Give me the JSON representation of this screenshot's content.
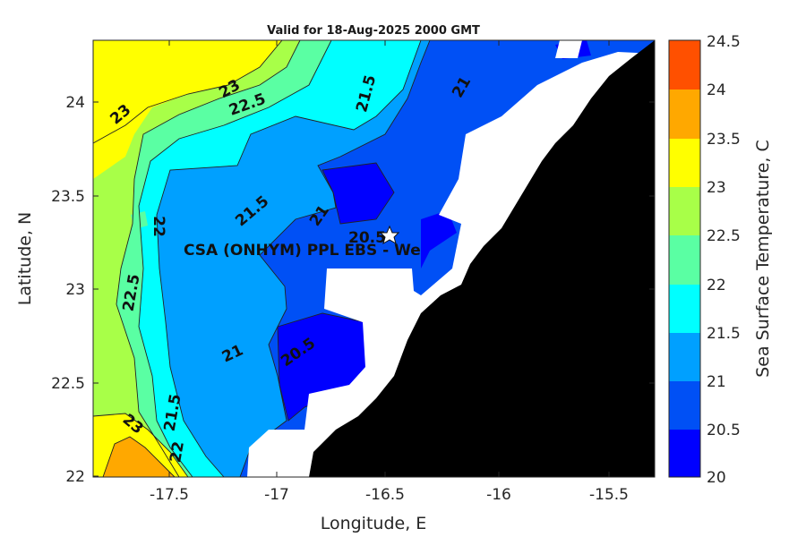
{
  "title": "Valid for 18-Aug-2025 2000 GMT",
  "x_axis": {
    "label": "Longitude, E",
    "ticks": [
      "-17.5",
      "-17",
      "-16.5",
      "-16",
      "-15.5"
    ]
  },
  "y_axis": {
    "label": "Latitude, N",
    "ticks": [
      "24",
      "23.5",
      "23",
      "22.5",
      "22"
    ]
  },
  "colorbar": {
    "label": "Sea Surface Temperature, C",
    "ticks": [
      "24.5",
      "24",
      "23.5",
      "23",
      "22.5",
      "22",
      "21.5",
      "21",
      "20.5",
      "20"
    ]
  },
  "site_label": "CSA (ONHYM) PPL EBS  - We",
  "contour_labels": [
    "23",
    "23",
    "22.5",
    "21.5",
    "21",
    "22",
    "21.5",
    "21",
    "20.5",
    "22.5",
    "21",
    "20.5",
    "23",
    "21.5",
    "22"
  ],
  "chart_data": {
    "type": "contour map",
    "variable": "Sea Surface Temperature",
    "units": "C",
    "xlim": [
      -17.8,
      -15.35
    ],
    "ylim": [
      22.0,
      24.35
    ],
    "clim": [
      20,
      24.5
    ],
    "levels": [
      20,
      20.5,
      21,
      21.5,
      22,
      22.5,
      23,
      23.5,
      24,
      24.5
    ],
    "level_colors": [
      "#0000ff",
      "#0050f5",
      "#00a0ff",
      "#00ffff",
      "#5affa3",
      "#a8ff48",
      "#ffff00",
      "#ffa800",
      "#ff5000"
    ],
    "land_color": "#000000",
    "no_data_color": "#ffffff",
    "site_marker": {
      "symbol": "star",
      "lon": -16.5,
      "lat": 23.3
    }
  }
}
